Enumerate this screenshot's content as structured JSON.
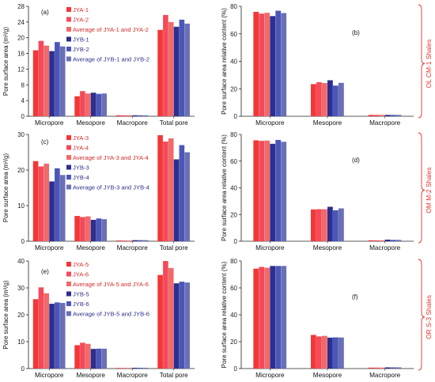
{
  "colors": {
    "JYA_a": "#f23737",
    "JYA_b": "#f44a5a",
    "JYA_avg": "#f06a6a",
    "JYB_a": "#2c2f8e",
    "JYB_b": "#4a56b8",
    "JYB_avg": "#6a6fb6",
    "axis": "#222222",
    "bracket": "#e8322b"
  },
  "row_labels": [
    "OL CM-1 Shales",
    "OM M-2 Shales",
    "OR S-3 Shales"
  ],
  "chart_data": [
    {
      "type": "bar",
      "panel": "(a)",
      "ylabel": "Pore surface area (m²/g)",
      "ylim": [
        0,
        28
      ],
      "yticks": [
        "0",
        "4",
        "8",
        "12",
        "16",
        "20",
        "24",
        "28"
      ],
      "categories": [
        "Micropore",
        "Mesopore",
        "Macropore",
        "Total pore"
      ],
      "legend": [
        "JYA-1",
        "JYA-2",
        "Average of JYA-1 and JYA-2",
        "JYB-1",
        "JYB-2",
        "Average of JYB-1 and JYB-2"
      ],
      "series": [
        {
          "name": "JYA-1",
          "values": [
            16.8,
            5.1,
            0.25,
            22.0
          ]
        },
        {
          "name": "JYA-2",
          "values": [
            19.2,
            6.4,
            0.25,
            25.8
          ]
        },
        {
          "name": "Average of JYA-1 and JYA-2",
          "values": [
            18.0,
            5.8,
            0.25,
            24.0
          ]
        },
        {
          "name": "JYB-1",
          "values": [
            16.6,
            6.0,
            0.25,
            22.8
          ]
        },
        {
          "name": "JYB-2",
          "values": [
            18.9,
            5.7,
            0.25,
            24.6
          ]
        },
        {
          "name": "Average of JYB-1 and JYB-2",
          "values": [
            17.8,
            5.8,
            0.25,
            23.6
          ]
        }
      ]
    },
    {
      "type": "bar",
      "panel": "(b)",
      "ylabel": "Pore surface area relative content (%)",
      "ylim": [
        0,
        80
      ],
      "yticks": [
        "0",
        "20",
        "40",
        "60",
        "80"
      ],
      "categories": [
        "Micropore",
        "Mesopore",
        "Macropore"
      ],
      "series": [
        {
          "name": "JYA-1",
          "values": [
            76.0,
            23.4,
            1.0
          ]
        },
        {
          "name": "JYA-2",
          "values": [
            74.7,
            24.8,
            1.0
          ]
        },
        {
          "name": "Average of JYA-1 and JYA-2",
          "values": [
            75.3,
            24.2,
            1.0
          ]
        },
        {
          "name": "JYB-1",
          "values": [
            72.9,
            26.2,
            1.0
          ]
        },
        {
          "name": "JYB-2",
          "values": [
            76.8,
            22.3,
            1.0
          ]
        },
        {
          "name": "Average of JYB-1 and JYB-2",
          "values": [
            75.1,
            24.3,
            1.0
          ]
        }
      ]
    },
    {
      "type": "bar",
      "panel": "(c)",
      "ylabel": "Pore surface area (m²/g)",
      "ylim": [
        0,
        30
      ],
      "yticks": [
        "0",
        "10",
        "20",
        "30"
      ],
      "categories": [
        "Micropore",
        "Mesopore",
        "Macropore",
        "Total pore"
      ],
      "legend": [
        "JYA-3",
        "JYA-4",
        "Average of JYA-3 and JYA-4",
        "JYB-3",
        "JYB-4",
        "Average of JYB-3 and JYB-4"
      ],
      "series": [
        {
          "name": "JYA-3",
          "values": [
            22.5,
            7.1,
            0.2,
            29.8
          ]
        },
        {
          "name": "JYA-4",
          "values": [
            21.0,
            6.8,
            0.2,
            28.0
          ]
        },
        {
          "name": "Average of JYA-3 and JYA-4",
          "values": [
            21.8,
            7.0,
            0.2,
            28.9
          ]
        },
        {
          "name": "JYB-3",
          "values": [
            16.8,
            6.0,
            0.3,
            23.0
          ]
        },
        {
          "name": "JYB-4",
          "values": [
            20.5,
            6.4,
            0.3,
            27.0
          ]
        },
        {
          "name": "Average of JYB-3 and JYB-4",
          "values": [
            18.6,
            6.2,
            0.3,
            25.0
          ]
        }
      ]
    },
    {
      "type": "bar",
      "panel": "(d)",
      "ylabel": "Pore surface area relative content (%)",
      "ylim": [
        0,
        80
      ],
      "yticks": [
        "0",
        "20",
        "40",
        "60",
        "80"
      ],
      "categories": [
        "Micropore",
        "Mesopore",
        "Macropore"
      ],
      "series": [
        {
          "name": "JYA-3",
          "values": [
            75.6,
            23.8,
            0.7
          ]
        },
        {
          "name": "JYA-4",
          "values": [
            75.2,
            24.0,
            0.7
          ]
        },
        {
          "name": "Average of JYA-3 and JYA-4",
          "values": [
            75.4,
            24.0,
            0.7
          ]
        },
        {
          "name": "JYB-3",
          "values": [
            73.0,
            25.8,
            1.2
          ]
        },
        {
          "name": "JYB-4",
          "values": [
            75.9,
            23.2,
            1.0
          ]
        },
        {
          "name": "Average of JYB-3 and JYB-4",
          "values": [
            74.5,
            24.6,
            1.0
          ]
        }
      ]
    },
    {
      "type": "bar",
      "panel": "(e)",
      "ylabel": "Pore surface area (m²/g)",
      "ylim": [
        0,
        40
      ],
      "yticks": [
        "0",
        "10",
        "20",
        "30",
        "40"
      ],
      "categories": [
        "Micropore",
        "Mesopore",
        "Macropore",
        "Total pore"
      ],
      "legend": [
        "JYA-5",
        "JYA-6",
        "Average of JYA-5 and JYA-6",
        "JYB-5",
        "JYB-6",
        "Average of JYB-5 and JYB-6"
      ],
      "series": [
        {
          "name": "JYA-5",
          "values": [
            25.8,
            8.7,
            0.2,
            34.8
          ]
        },
        {
          "name": "JYA-6",
          "values": [
            30.2,
            9.6,
            0.2,
            40.0
          ]
        },
        {
          "name": "Average of JYA-5 and JYA-6",
          "values": [
            28.0,
            9.2,
            0.2,
            37.4
          ]
        },
        {
          "name": "JYB-5",
          "values": [
            24.1,
            7.3,
            0.3,
            31.7
          ]
        },
        {
          "name": "JYB-6",
          "values": [
            24.6,
            7.4,
            0.3,
            32.3
          ]
        },
        {
          "name": "Average of JYB-5 and JYB-6",
          "values": [
            24.4,
            7.4,
            0.3,
            32.0
          ]
        }
      ]
    },
    {
      "type": "bar",
      "panel": "(f)",
      "ylabel": "Pore surface area relative content (%)",
      "ylim": [
        0,
        80
      ],
      "yticks": [
        "0",
        "20",
        "40",
        "60",
        "80"
      ],
      "categories": [
        "Micropore",
        "Mesopore",
        "Macropore"
      ],
      "series": [
        {
          "name": "JYA-5",
          "values": [
            74.3,
            25.0,
            0.7
          ]
        },
        {
          "name": "JYA-6",
          "values": [
            75.6,
            23.9,
            0.7
          ]
        },
        {
          "name": "Average of JYA-5 and JYA-6",
          "values": [
            75.0,
            24.3,
            0.7
          ]
        },
        {
          "name": "JYB-5",
          "values": [
            76.3,
            23.0,
            0.9
          ]
        },
        {
          "name": "JYB-6",
          "values": [
            76.3,
            23.2,
            0.9
          ]
        },
        {
          "name": "Average of JYB-5 and JYB-6",
          "values": [
            76.3,
            23.1,
            0.9
          ]
        }
      ]
    }
  ]
}
